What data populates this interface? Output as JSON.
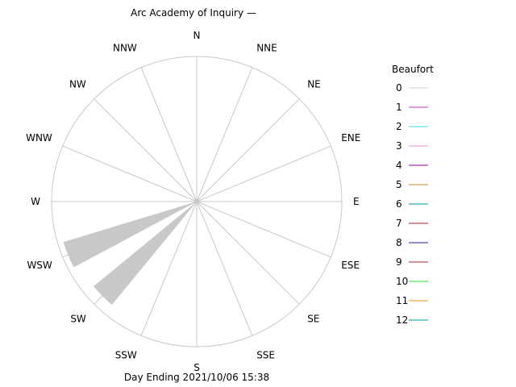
{
  "chart_data": {
    "type": "wind-rose",
    "title": "Arc Academy of Inquiry —",
    "footer": "Day Ending 2021/10/06 15:38",
    "directions": [
      "N",
      "NNE",
      "NE",
      "ENE",
      "E",
      "ESE",
      "SE",
      "SSE",
      "S",
      "SSW",
      "SW",
      "WSW",
      "W",
      "WNW",
      "NW",
      "NNW"
    ],
    "values": [
      0,
      0,
      0,
      0,
      0,
      0,
      0,
      0,
      0,
      0,
      0.92,
      0.96,
      0,
      0,
      0,
      0
    ],
    "rmax": 1,
    "grid": true,
    "petal_color": "#c8c8c8",
    "legend": {
      "title": "Beaufort",
      "placement": "right",
      "entries": [
        {
          "label": "0",
          "color": "#c8c8c8"
        },
        {
          "label": "1",
          "color": "#cc33cc"
        },
        {
          "label": "2",
          "color": "#33dddd"
        },
        {
          "label": "3",
          "color": "#ee88cc"
        },
        {
          "label": "4",
          "color": "#990099"
        },
        {
          "label": "5",
          "color": "#cc8833"
        },
        {
          "label": "6",
          "color": "#009999"
        },
        {
          "label": "7",
          "color": "#aa2222"
        },
        {
          "label": "8",
          "color": "#222288"
        },
        {
          "label": "9",
          "color": "#aa2222"
        },
        {
          "label": "10",
          "color": "#33dd33"
        },
        {
          "label": "11",
          "color": "#ee9900"
        },
        {
          "label": "12",
          "color": "#009999"
        }
      ]
    }
  }
}
